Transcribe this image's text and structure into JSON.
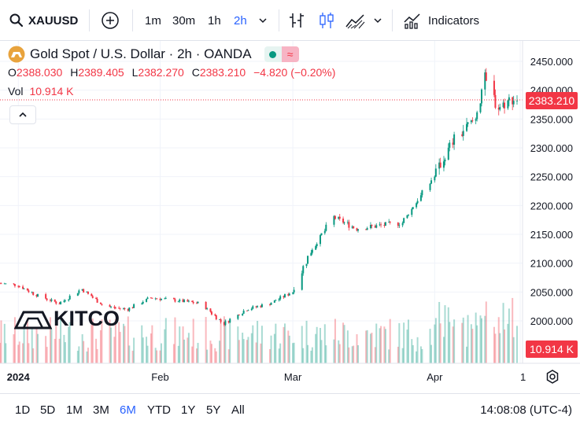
{
  "toolbar": {
    "symbol": "XAUUSD",
    "intervals": [
      "1m",
      "30m",
      "1h",
      "2h"
    ],
    "active_interval": "2h",
    "indicators_label": "Indicators"
  },
  "legend": {
    "title": "Gold Spot / U.S. Dollar · 2h · OANDA",
    "open_label": "O",
    "open": "2388.030",
    "high_label": "H",
    "high": "2389.405",
    "low_label": "L",
    "low": "2382.270",
    "close_label": "C",
    "close": "2383.210",
    "change": "−4.820 (−0.20%)",
    "vol_label": "Vol",
    "vol_value": "10.914 K"
  },
  "watermark": "KITCO",
  "price_tag": "2383.210",
  "volume_tag": "10.914 K",
  "bottombar": {
    "ranges": [
      "1D",
      "5D",
      "1M",
      "3M",
      "6M",
      "YTD",
      "1Y",
      "5Y",
      "All"
    ],
    "active_range": "6M",
    "clock": "14:08:08 (UTC-4)"
  },
  "colors": {
    "up": "#089981",
    "down": "#f23645",
    "accent": "#2962ff"
  },
  "chart_data": {
    "type": "candlestick",
    "title": "Gold Spot / U.S. Dollar · 2h · OANDA",
    "y_ticks": [
      "2450.000",
      "2400.000",
      "2350.000",
      "2300.000",
      "2250.000",
      "2200.000",
      "2150.000",
      "2100.000",
      "2050.000",
      "2000.000"
    ],
    "ylim": [
      1975,
      2470
    ],
    "x_ticks": [
      "2024",
      "Feb",
      "Mar",
      "Apr",
      "1"
    ],
    "price_path": [
      [
        "2023-12-28",
        2065
      ],
      [
        "2024-01-01",
        2062
      ],
      [
        "2024-01-05",
        2045
      ],
      [
        "2024-01-10",
        2030
      ],
      [
        "2024-01-15",
        2055
      ],
      [
        "2024-01-20",
        2025
      ],
      [
        "2024-01-25",
        2020
      ],
      [
        "2024-01-30",
        2040
      ],
      [
        "2024-02-05",
        2035
      ],
      [
        "2024-02-10",
        2030
      ],
      [
        "2024-02-15",
        1995
      ],
      [
        "2024-02-20",
        2020
      ],
      [
        "2024-02-25",
        2030
      ],
      [
        "2024-03-01",
        2050
      ],
      [
        "2024-03-05",
        2120
      ],
      [
        "2024-03-10",
        2180
      ],
      [
        "2024-03-15",
        2160
      ],
      [
        "2024-03-20",
        2165
      ],
      [
        "2024-03-25",
        2170
      ],
      [
        "2024-03-28",
        2205
      ],
      [
        "2024-04-01",
        2250
      ],
      [
        "2024-04-05",
        2310
      ],
      [
        "2024-04-10",
        2350
      ],
      [
        "2024-04-12",
        2420
      ],
      [
        "2024-04-15",
        2370
      ],
      [
        "2024-04-18",
        2385
      ],
      [
        "2024-04-19",
        2383.21
      ]
    ],
    "last_price": 2383.21,
    "last_volume": "10.914 K"
  }
}
